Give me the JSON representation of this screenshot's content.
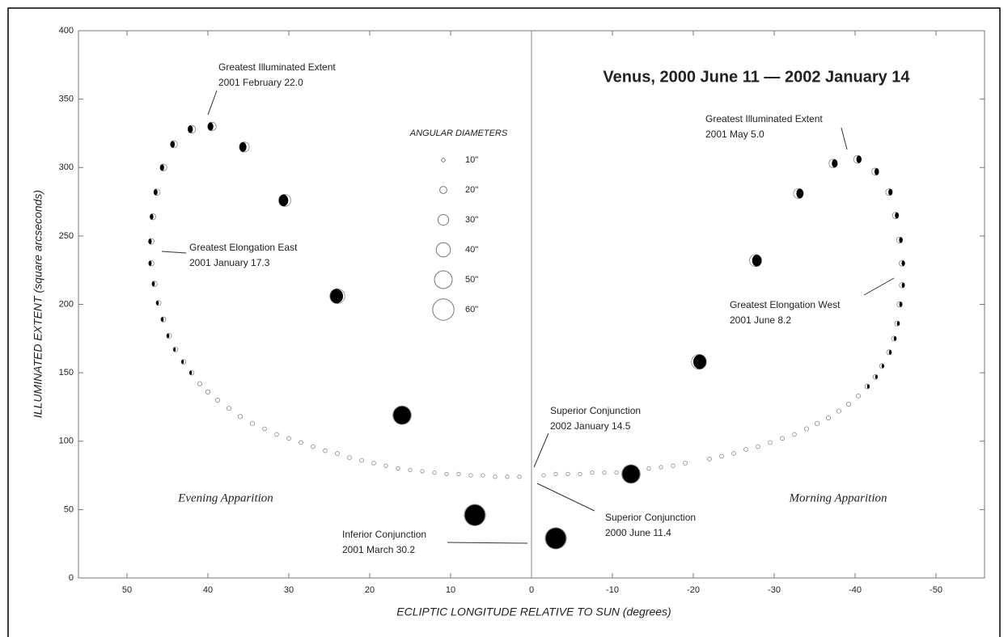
{
  "chart_data": {
    "type": "scatter",
    "title": "Venus,  2000 June 11 — 2002 January 14",
    "xlabel": "ECLIPTIC LONGITUDE RELATIVE TO SUN  (degrees)",
    "ylabel": "ILLUMINATED EXTENT  (square arcseconds)",
    "xlim": [
      56,
      -56
    ],
    "ylim": [
      0,
      400
    ],
    "xticks": [
      50,
      40,
      30,
      20,
      10,
      0,
      -10,
      -20,
      -30,
      -40,
      -50
    ],
    "yticks": [
      0,
      50,
      100,
      150,
      200,
      250,
      300,
      350,
      400
    ],
    "x": [
      7,
      16,
      24,
      30.5,
      35.5,
      39.5,
      42,
      44.2,
      45.5,
      46.3,
      46.8,
      47,
      47,
      46.6,
      46.1,
      45.5,
      44.8,
      44,
      43,
      42,
      41,
      40,
      38.8,
      37.4,
      36,
      34.5,
      33,
      31.5,
      30,
      28.5,
      27,
      25.5,
      24,
      22.5,
      21,
      19.5,
      18,
      16.5,
      15,
      13.5,
      12,
      10.5,
      9,
      7.5,
      6,
      4.5,
      3,
      1.5,
      -3,
      -12.3,
      -20.7,
      -27.7,
      -33,
      -37.3,
      -40.3,
      -42.5,
      -44.2,
      -45,
      -45.5,
      -45.8,
      -45.8,
      -45.5,
      -45.2,
      -44.8,
      -44.2,
      -43.3,
      -42.5,
      -41.5,
      -40.4,
      -39.2,
      -38,
      -36.7,
      -35.3,
      -34,
      -32.5,
      -31,
      -29.5,
      -28,
      -26.5,
      -25,
      -23.5,
      -22,
      -19,
      -17.5,
      -16,
      -14.5,
      -10.5,
      -9,
      -7.5,
      -6,
      -4.5,
      -3,
      -1.5
    ],
    "values": [
      46,
      119,
      206,
      276,
      315,
      330,
      328,
      317,
      300,
      282,
      264,
      246,
      230,
      215,
      201,
      189,
      177,
      167,
      158,
      150,
      142,
      136,
      130,
      124,
      118,
      113,
      109,
      105,
      102,
      99,
      96,
      93,
      91,
      88,
      86,
      84,
      82,
      80,
      79,
      78,
      77,
      76,
      76,
      75,
      75,
      74,
      74,
      74,
      29,
      76,
      158,
      232,
      281,
      303,
      306,
      297,
      282,
      265,
      247,
      230,
      214,
      200,
      186,
      175,
      165,
      155,
      147,
      140,
      133,
      127,
      122,
      117,
      113,
      109,
      105,
      102,
      99,
      96,
      94,
      91,
      89,
      87,
      84,
      82,
      81,
      80,
      77,
      77,
      77,
      76,
      76,
      76,
      75
    ],
    "sizes": [
      60,
      52,
      42,
      34,
      28,
      24,
      22,
      20,
      19,
      18,
      17,
      16,
      15,
      15,
      14,
      14,
      14,
      13,
      13,
      13,
      12,
      12,
      12,
      12,
      12,
      12,
      11,
      11,
      11,
      11,
      11,
      11,
      11,
      11,
      11,
      11,
      10,
      10,
      10,
      10,
      10,
      10,
      10,
      10,
      10,
      10,
      10,
      10,
      60,
      52,
      42,
      34,
      28,
      24,
      22,
      20,
      19,
      18,
      17,
      16,
      15,
      15,
      14,
      14,
      14,
      13,
      13,
      13,
      12,
      12,
      12,
      12,
      12,
      12,
      11,
      11,
      11,
      11,
      11,
      11,
      11,
      11,
      11,
      10,
      10,
      10,
      10,
      10,
      10,
      10,
      10,
      10,
      10
    ],
    "size_legend_title": "ANGULAR DIAMETERS",
    "size_legend": [
      {
        "value": 10,
        "label": "10\""
      },
      {
        "value": 20,
        "label": "20\""
      },
      {
        "value": 30,
        "label": "30\""
      },
      {
        "value": 40,
        "label": "40\""
      },
      {
        "value": 50,
        "label": "50\""
      },
      {
        "value": 60,
        "label": "60\""
      }
    ],
    "annotations": [
      {
        "label": "Greatest Illuminated Extent",
        "date": "2001 February 22.0"
      },
      {
        "label": "Greatest Elongation East",
        "date": "2001 January 17.3"
      },
      {
        "label": "Greatest Illuminated Extent",
        "date": "2001 May 5.0"
      },
      {
        "label": "Greatest Elongation West",
        "date": "2001 June 8.2"
      },
      {
        "label": "Superior Conjunction",
        "date": "2002 January 14.5"
      },
      {
        "label": "Superior Conjunction",
        "date": "2000 June 11.4"
      },
      {
        "label": "Inferior Conjunction",
        "date": "2001 March 30.2"
      }
    ],
    "regions": [
      "Evening Apparition",
      "Morning Apparition"
    ]
  }
}
